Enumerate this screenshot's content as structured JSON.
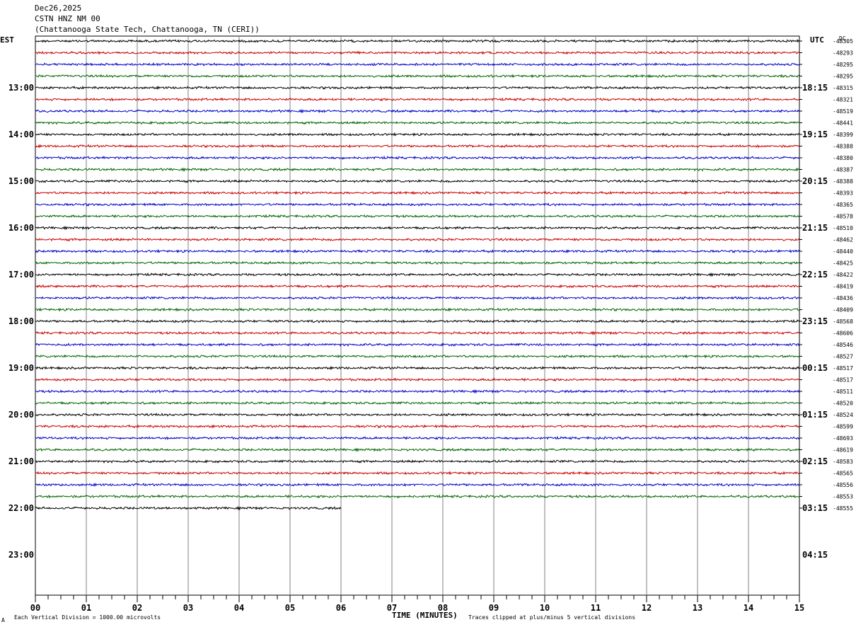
{
  "header": {
    "date": "Dec26,2025",
    "station": "CSTN HNZ NM 00",
    "location": "(Chattanooga State Tech, Chattanooga, TN (CERI))"
  },
  "tz_left": "EST",
  "tz_right": "UTC",
  "dc_label": "DC",
  "xlabel": "TIME (MINUTES)",
  "footer_left": "Each Vertical Division = 1000.00 microvolts",
  "footer_right": "Traces clipped at plus/minus 5 vertical divisions",
  "corner_mark": "A",
  "chart_data": {
    "type": "line",
    "title": "CSTN HNZ NM 00",
    "xlabel": "TIME (MINUTES)",
    "xlim": [
      0,
      15
    ],
    "x_ticks": [
      "00",
      "01",
      "02",
      "03",
      "04",
      "05",
      "06",
      "07",
      "08",
      "09",
      "10",
      "11",
      "12",
      "13",
      "14",
      "15"
    ],
    "row_colors": [
      "#000000",
      "#cc0000",
      "#0000cc",
      "#006600"
    ],
    "est_hour_labels": [
      "13:00",
      "14:00",
      "15:00",
      "16:00",
      "17:00",
      "18:00",
      "19:00",
      "20:00",
      "21:00",
      "22:00",
      "23:00"
    ],
    "utc_hour_labels": [
      "18:15",
      "19:15",
      "20:15",
      "21:15",
      "22:15",
      "23:15",
      "00:15",
      "01:15",
      "02:15",
      "03:15",
      "04:15"
    ],
    "dc_offsets": [
      "-48305",
      "-48293",
      "-48295",
      "-48295",
      "-48315",
      "-48321",
      "-48519",
      "-48441",
      "-48399",
      "-48388",
      "-48380",
      "-48387",
      "-48388",
      "-48393",
      "-48365",
      "-48578",
      "-48510",
      "-48462",
      "-48440",
      "-48425",
      "-48422",
      "-48419",
      "-48436",
      "-48409",
      "-48568",
      "-48606",
      "-48546",
      "-48527",
      "-48517",
      "-48517",
      "-48511",
      "-48520",
      "-48524",
      "-48599",
      "-48693",
      "-48619",
      "-48583",
      "-48565",
      "-48556",
      "-48553",
      "-48555"
    ],
    "trace_count": 41,
    "last_trace_end_minute": 6.0,
    "vertical_division_microvolts": 1000.0,
    "clip_divisions": 5
  }
}
